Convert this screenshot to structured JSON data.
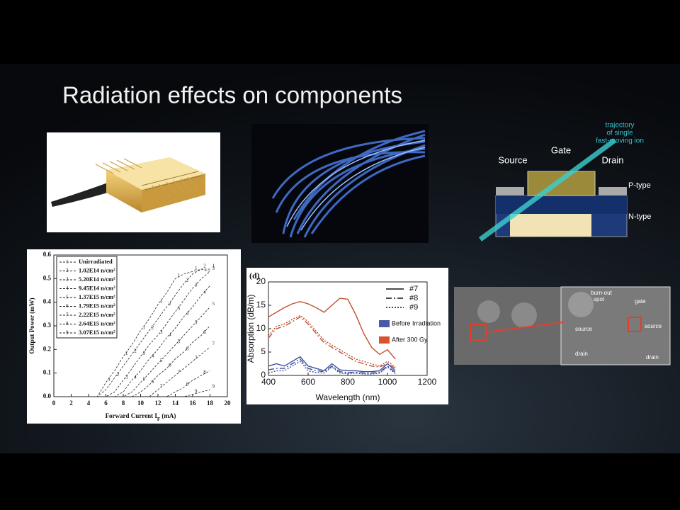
{
  "slide": {
    "title": "Radiation effects on components"
  },
  "diagram": {
    "trajectory": [
      "trajectory",
      "of single",
      "fast-moving ion"
    ],
    "source": "Source",
    "gate": "Gate",
    "drain": "Drain",
    "p_type": "P-type",
    "n_type": "N-type"
  },
  "sem_image": {
    "labels": [
      "burn-out",
      "spot",
      "gate",
      "source",
      "source",
      "drain",
      "drain"
    ]
  },
  "chart_data": [
    {
      "type": "line",
      "ylabel": "Output Power (mW)",
      "xlabel_parts": [
        "Forward Current I",
        "F",
        " (mA)"
      ],
      "x": [
        0,
        1,
        2,
        3,
        4,
        5,
        6,
        7,
        8,
        9,
        10,
        11,
        12,
        13,
        14,
        15,
        16,
        17,
        18
      ],
      "xlim": [
        0,
        20
      ],
      "xticks": [
        0,
        2,
        4,
        6,
        8,
        10,
        12,
        14,
        16,
        18,
        20
      ],
      "ylim": [
        0,
        0.6
      ],
      "yticks": [
        {
          "value": 0,
          "label": "0.0"
        },
        0.1,
        0.2,
        0.3,
        0.4,
        0.5,
        0.6
      ],
      "series": [
        {
          "marker": "1",
          "name": "Unirradiated",
          "color": "#222",
          "values": [
            0,
            0,
            0,
            0,
            0,
            0,
            0.06,
            0.11,
            0.17,
            0.22,
            0.28,
            0.33,
            0.39,
            0.44,
            0.5,
            0.52,
            0.53,
            0.54,
            0.54
          ]
        },
        {
          "marker": "2",
          "name": "1.02E14 n/cm²",
          "color": "#222",
          "values": [
            0,
            0,
            0,
            0,
            0,
            0,
            0.03,
            0.08,
            0.13,
            0.18,
            0.23,
            0.28,
            0.33,
            0.38,
            0.43,
            0.48,
            0.52,
            0.54,
            0.53
          ]
        },
        {
          "marker": "3",
          "name": "5.20E14 n/cm²",
          "color": "#222",
          "values": [
            0,
            0,
            0,
            0,
            0,
            0,
            0,
            0.02,
            0.07,
            0.12,
            0.17,
            0.22,
            0.26,
            0.31,
            0.36,
            0.41,
            0.46,
            0.5,
            0.53
          ]
        },
        {
          "marker": "4",
          "name": "9.45E14 n/cm²",
          "color": "#222",
          "values": [
            0,
            0,
            0,
            0,
            0,
            0,
            0,
            0,
            0.02,
            0.07,
            0.11,
            0.16,
            0.2,
            0.25,
            0.29,
            0.34,
            0.38,
            0.43,
            0.47
          ]
        },
        {
          "marker": "5",
          "name": "1.37E15 n/cm²",
          "color": "#222",
          "values": [
            0,
            0,
            0,
            0,
            0,
            0,
            0,
            0,
            0,
            0.02,
            0.06,
            0.1,
            0.14,
            0.18,
            0.22,
            0.26,
            0.3,
            0.34,
            0.38
          ]
        },
        {
          "marker": "6",
          "name": "1.79E15 n/cm²",
          "color": "#222",
          "values": [
            0,
            0,
            0,
            0,
            0,
            0,
            0,
            0,
            0,
            0,
            0.02,
            0.05,
            0.09,
            0.12,
            0.16,
            0.19,
            0.23,
            0.26,
            0.3
          ]
        },
        {
          "marker": "7",
          "name": "2.22E15 n/cm²",
          "color": "#222",
          "values": [
            0,
            0,
            0,
            0,
            0,
            0,
            0,
            0,
            0,
            0,
            0,
            0,
            0.03,
            0.06,
            0.09,
            0.12,
            0.15,
            0.18,
            0.21
          ]
        },
        {
          "marker": "8",
          "name": "2.64E15 n/cm²",
          "color": "#222",
          "values": [
            0,
            0,
            0,
            0,
            0,
            0,
            0,
            0,
            0,
            0,
            0,
            0,
            0,
            0,
            0.02,
            0.04,
            0.07,
            0.09,
            0.11
          ]
        },
        {
          "marker": "9",
          "name": "3.07E15 n/cm²",
          "color": "#222",
          "values": [
            0,
            0,
            0,
            0,
            0,
            0,
            0,
            0,
            0,
            0,
            0,
            0,
            0,
            0,
            0,
            0,
            0.01,
            0.02,
            0.03
          ]
        }
      ]
    },
    {
      "type": "line",
      "panel": "(d)",
      "ylabel": "Absorption (dB/m)",
      "xlabel": "Wavelength (nm)",
      "x": [
        400,
        440,
        480,
        520,
        560,
        600,
        640,
        680,
        720,
        760,
        800,
        840,
        880,
        920,
        960,
        1000,
        1040
      ],
      "xlim": [
        400,
        1200
      ],
      "xticks": [
        400,
        600,
        800,
        1000,
        1200
      ],
      "ylim": [
        0,
        20
      ],
      "yticks": [
        0,
        5,
        10,
        15,
        20
      ],
      "color_legend": [
        {
          "name": "Before Irradiation",
          "color": "#4a5aa8"
        },
        {
          "name": "After 300 Gy",
          "color": "#d9542e"
        }
      ],
      "series": [
        {
          "name": "#7",
          "dash": "none",
          "color": "#c0502e",
          "values": [
            12.5,
            13.5,
            14.5,
            15.3,
            15.8,
            15.3,
            14.5,
            13.5,
            15,
            16.5,
            16.3,
            13,
            9,
            6,
            4.5,
            5.5,
            3.5
          ]
        },
        {
          "name": "#8",
          "dash": "8 3 2 3",
          "color": "#c0502e",
          "values": [
            8,
            10,
            10.5,
            11.5,
            12.5,
            11,
            9,
            7,
            6,
            5,
            4,
            3,
            2.5,
            2,
            1.8,
            2.5,
            1.5
          ]
        },
        {
          "name": "#9",
          "dash": "2 2",
          "color": "#c0502e",
          "values": [
            8.5,
            10.5,
            11,
            12,
            12.8,
            11.5,
            9.5,
            7.5,
            6.5,
            5.5,
            4.5,
            3.5,
            3,
            2.5,
            2,
            3,
            1.8
          ]
        },
        {
          "name": "#7",
          "dash": "none",
          "color": "#3d4f9e",
          "values": [
            2,
            2.5,
            2,
            3,
            4,
            2,
            1.5,
            1,
            2.5,
            1.2,
            1,
            1,
            0.8,
            0.8,
            1,
            2.5,
            1
          ]
        },
        {
          "name": "#8",
          "dash": "8 3 2 3",
          "color": "#3d4f9e",
          "values": [
            1.2,
            1.5,
            1.5,
            2.5,
            3.5,
            1.5,
            1,
            0.8,
            2,
            0.8,
            0.6,
            0.7,
            0.5,
            0.5,
            0.7,
            2,
            0.6
          ]
        },
        {
          "name": "#9",
          "dash": "2 2",
          "color": "#3d4f9e",
          "values": [
            0.5,
            1,
            1,
            2,
            3,
            1,
            0.6,
            0.5,
            1.8,
            0.5,
            0.4,
            0.5,
            0.3,
            0.3,
            0.5,
            1.8,
            0.4
          ]
        }
      ]
    }
  ]
}
